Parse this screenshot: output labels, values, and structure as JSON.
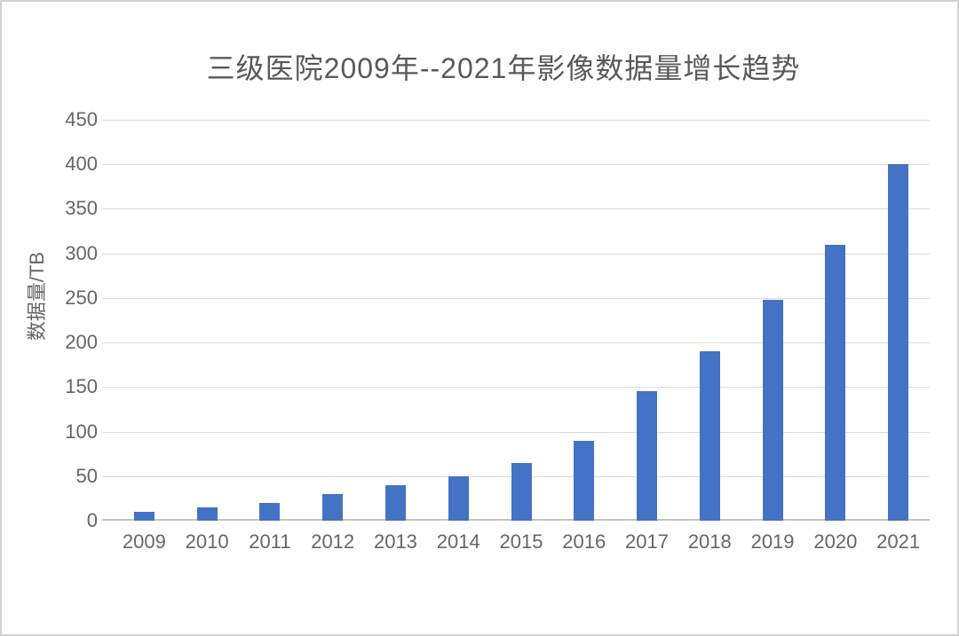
{
  "chart_data": {
    "type": "bar",
    "title": "三级医院2009年--2021年影像数据量增长趋势",
    "ylabel": "数据量/TB",
    "xlabel": "",
    "categories": [
      "2009",
      "2010",
      "2011",
      "2012",
      "2013",
      "2014",
      "2015",
      "2016",
      "2017",
      "2018",
      "2019",
      "2020",
      "2021"
    ],
    "values": [
      10,
      15,
      20,
      30,
      40,
      50,
      65,
      90,
      145,
      190,
      248,
      310,
      400
    ],
    "ylim": [
      0,
      450
    ],
    "ytick_step": 50,
    "ytick_labels": [
      "0",
      "50",
      "100",
      "150",
      "200",
      "250",
      "300",
      "350",
      "400",
      "450"
    ],
    "grid": "horizontal",
    "legend": "none",
    "bar_color": "#4472c4"
  },
  "colors": {
    "bar": "#4472c4",
    "gridline": "#dcdcdc",
    "axis_line": "#c4c4c4",
    "tick_text": "#666666",
    "title_text": "#595959",
    "frame_border": "#d2d2d2",
    "background": "#ffffff"
  }
}
